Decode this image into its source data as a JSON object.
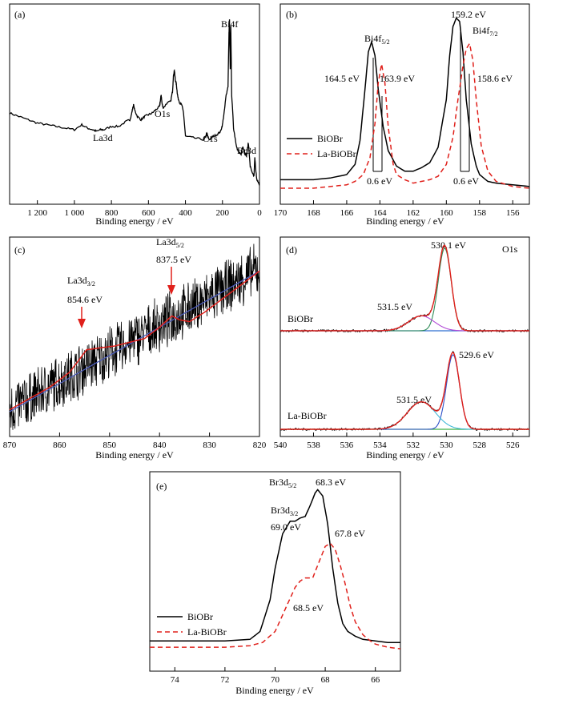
{
  "chart_data": [
    {
      "panel": "(a)",
      "type": "line",
      "xlabel": "Binding energy / eV",
      "xlim": [
        1350,
        0
      ],
      "xticks": [
        "1 200",
        "1 000",
        "800",
        "600",
        "400",
        "200",
        "0"
      ],
      "xtick_values": [
        1200,
        1000,
        800,
        600,
        400,
        200,
        0
      ],
      "annotations": [
        {
          "text": "Bi4f",
          "x": 160
        },
        {
          "text": "O1s",
          "x": 531
        },
        {
          "text": "La3d",
          "x": 835
        },
        {
          "text": "C1s",
          "x": 285
        },
        {
          "text": "Br3d",
          "x": 69
        }
      ],
      "series": [
        {
          "color": "#000000",
          "x": [
            1350,
            1300,
            1250,
            1200,
            1150,
            1100,
            1050,
            1000,
            960,
            930,
            900,
            880,
            860,
            840,
            800,
            760,
            720,
            700,
            690,
            685,
            680,
            675,
            660,
            640,
            620,
            600,
            580,
            560,
            540,
            535,
            531,
            527,
            520,
            500,
            480,
            470,
            465,
            460,
            455,
            450,
            445,
            440,
            430,
            420,
            410,
            400,
            350,
            300,
            290,
            285,
            280,
            270,
            250,
            230,
            210,
            200,
            190,
            180,
            170,
            165,
            162,
            158,
            155,
            150,
            140,
            130,
            120,
            110,
            100,
            95,
            90,
            80,
            70,
            65,
            60,
            50,
            40,
            30,
            25,
            20,
            15,
            10,
            5,
            0
          ],
          "y": [
            0.44,
            0.42,
            0.4,
            0.38,
            0.37,
            0.36,
            0.35,
            0.34,
            0.37,
            0.35,
            0.34,
            0.33,
            0.34,
            0.34,
            0.36,
            0.36,
            0.39,
            0.4,
            0.44,
            0.47,
            0.49,
            0.46,
            0.42,
            0.4,
            0.42,
            0.43,
            0.44,
            0.46,
            0.48,
            0.52,
            0.55,
            0.5,
            0.47,
            0.5,
            0.51,
            0.57,
            0.66,
            0.7,
            0.64,
            0.62,
            0.57,
            0.53,
            0.5,
            0.49,
            0.44,
            0.3,
            0.29,
            0.28,
            0.3,
            0.32,
            0.3,
            0.28,
            0.3,
            0.31,
            0.33,
            0.37,
            0.45,
            0.55,
            0.6,
            0.92,
            1.0,
            0.7,
            0.96,
            0.55,
            0.35,
            0.28,
            0.22,
            0.2,
            0.19,
            0.22,
            0.24,
            0.2,
            0.18,
            0.23,
            0.26,
            0.12,
            0.08,
            0.06,
            0.17,
            0.1,
            0.04,
            0.03,
            0.02,
            0.01
          ]
        }
      ]
    },
    {
      "panel": "(b)",
      "type": "line",
      "xlabel": "Binding energy / eV",
      "xlim": [
        170,
        155
      ],
      "xticks": [
        "170",
        "168",
        "166",
        "164",
        "162",
        "160",
        "158",
        "156"
      ],
      "xtick_values": [
        170,
        168,
        166,
        164,
        162,
        160,
        158,
        156
      ],
      "annotations": [
        {
          "text": "164.5 eV"
        },
        {
          "text": "163.9 eV"
        },
        {
          "text": "159.2 eV"
        },
        {
          "text": "158.6 eV"
        },
        {
          "text": "0.6 eV"
        },
        {
          "text": "0.6 eV"
        },
        {
          "text": "Bi4f",
          "sub": "5/2"
        },
        {
          "text": "Bi4f",
          "sub": "7/2"
        }
      ],
      "legend": {
        "position": "left",
        "entries": [
          "BiOBr",
          "La-BiOBr"
        ]
      },
      "series": [
        {
          "name": "BiOBr",
          "color": "#000000",
          "style": "solid",
          "x": [
            170,
            168,
            167,
            166,
            165.5,
            165.2,
            164.9,
            164.7,
            164.5,
            164.3,
            164.1,
            163.8,
            163.5,
            163,
            162.5,
            162,
            161.5,
            161,
            160.5,
            160,
            159.8,
            159.6,
            159.4,
            159.2,
            159,
            158.8,
            158.5,
            158.2,
            158,
            157.5,
            157,
            156,
            155
          ],
          "y": [
            0.05,
            0.05,
            0.06,
            0.08,
            0.14,
            0.28,
            0.58,
            0.8,
            0.86,
            0.78,
            0.58,
            0.36,
            0.22,
            0.13,
            0.1,
            0.1,
            0.12,
            0.15,
            0.24,
            0.52,
            0.78,
            0.95,
            1.0,
            0.98,
            0.8,
            0.52,
            0.26,
            0.13,
            0.08,
            0.04,
            0.03,
            0.02,
            0.01
          ]
        },
        {
          "name": "La-BiOBr",
          "color": "#e0201b",
          "style": "dashed",
          "x": [
            170,
            168,
            166,
            165.5,
            165,
            164.6,
            164.3,
            164.1,
            163.9,
            163.7,
            163.5,
            163.2,
            163,
            162.5,
            162,
            161.5,
            161,
            160.5,
            160,
            159.6,
            159.3,
            159,
            158.8,
            158.6,
            158.4,
            158.2,
            157.9,
            157.5,
            157,
            156,
            155
          ],
          "y": [
            0.0,
            0.0,
            0.02,
            0.04,
            0.08,
            0.18,
            0.38,
            0.62,
            0.73,
            0.62,
            0.36,
            0.14,
            0.08,
            0.05,
            0.03,
            0.04,
            0.05,
            0.07,
            0.14,
            0.3,
            0.52,
            0.72,
            0.82,
            0.85,
            0.75,
            0.52,
            0.25,
            0.1,
            0.04,
            0.01,
            0.0
          ]
        }
      ]
    },
    {
      "panel": "(c)",
      "type": "line",
      "xlabel": "Binding energy / eV",
      "xlim": [
        870,
        820
      ],
      "xticks": [
        "870",
        "860",
        "850",
        "840",
        "830",
        "820"
      ],
      "xtick_values": [
        870,
        860,
        850,
        840,
        830,
        820
      ],
      "annotations": [
        {
          "text": "La3d",
          "sub": "3/2"
        },
        {
          "text": "854.6 eV",
          "x": 854.6
        },
        {
          "text": "La3d",
          "sub": "5/2"
        },
        {
          "text": "837.5 eV",
          "x": 837.5
        }
      ],
      "series": [
        {
          "name": "raw",
          "color": "#000000",
          "style": "noisy",
          "x": [
            870,
            820
          ],
          "y": [
            0.1,
            0.85
          ],
          "noise": 0.13
        },
        {
          "name": "fit",
          "color": "#e0201b",
          "style": "solid",
          "x": [
            870,
            866,
            862,
            858,
            856,
            854.6,
            852,
            849,
            846,
            843,
            840,
            838,
            837.5,
            836,
            834,
            831,
            828,
            825,
            822,
            820
          ],
          "y": [
            0.1,
            0.16,
            0.22,
            0.3,
            0.37,
            0.42,
            0.43,
            0.44,
            0.46,
            0.48,
            0.54,
            0.59,
            0.6,
            0.58,
            0.57,
            0.62,
            0.68,
            0.74,
            0.8,
            0.84
          ]
        },
        {
          "name": "background",
          "color": "#4a5ab8",
          "style": "solid",
          "x": [
            870,
            820
          ],
          "y": [
            0.09,
            0.84
          ]
        }
      ]
    },
    {
      "panel": "(d)",
      "type": "line",
      "xlabel": "Binding energy / eV",
      "xlim": [
        540,
        525
      ],
      "xticks": [
        "540",
        "538",
        "536",
        "534",
        "532",
        "530",
        "528",
        "526"
      ],
      "xtick_values": [
        540,
        538,
        536,
        534,
        532,
        530,
        528,
        526
      ],
      "annotations": [
        {
          "text": "O1s"
        },
        {
          "text": "530.1 eV"
        },
        {
          "text": "531.5 eV"
        },
        {
          "text": "BiOBr"
        },
        {
          "text": "529.6 eV"
        },
        {
          "text": "531.5 eV"
        },
        {
          "text": "La-BiOBr"
        }
      ],
      "subplots": [
        {
          "label": "BiOBr",
          "baseline": 0.0,
          "peaks": [
            {
              "center": 530.1,
              "height": 1.0,
              "width": 0.55,
              "color": "#2e8b57"
            },
            {
              "center": 531.5,
              "height": 0.18,
              "width": 1.1,
              "color": "#b14ad6"
            }
          ],
          "fit_color": "#e0201b",
          "raw_color": "#000000",
          "bg_color": "#2e6fd0"
        },
        {
          "label": "La-BiOBr",
          "baseline": 0.0,
          "peaks": [
            {
              "center": 529.6,
              "height": 0.95,
              "width": 0.55,
              "color": "#2e50c8"
            },
            {
              "center": 531.5,
              "height": 0.35,
              "width": 1.2,
              "color": "#3fb8d8"
            }
          ],
          "fit_color": "#e0201b",
          "raw_color": "#000000",
          "bg_color": "#3cb043"
        }
      ]
    },
    {
      "panel": "(e)",
      "type": "line",
      "xlabel": "Binding energy / eV",
      "xlim": [
        75,
        65
      ],
      "xticks": [
        "74",
        "72",
        "70",
        "68",
        "66"
      ],
      "xtick_values": [
        74,
        72,
        70,
        68,
        66
      ],
      "annotations": [
        {
          "text": "Br3d",
          "sub": "5/2"
        },
        {
          "text": "68.3 eV"
        },
        {
          "text": "Br3d",
          "sub": "3/2"
        },
        {
          "text": "69.0 eV"
        },
        {
          "text": "67.8 eV"
        },
        {
          "text": "68.5 eV"
        }
      ],
      "legend": {
        "position": "bottom-left",
        "entries": [
          "BiOBr",
          "La-BiOBr"
        ]
      },
      "series": [
        {
          "name": "BiOBr",
          "color": "#000000",
          "style": "solid",
          "x": [
            75,
            74,
            73,
            72,
            71,
            70.6,
            70.2,
            70,
            69.7,
            69.4,
            69.2,
            69.0,
            68.8,
            68.6,
            68.4,
            68.3,
            68.1,
            67.9,
            67.7,
            67.5,
            67.3,
            67.1,
            66.8,
            66.5,
            66,
            65.5,
            65
          ],
          "y": [
            0.04,
            0.04,
            0.04,
            0.04,
            0.05,
            0.1,
            0.3,
            0.5,
            0.72,
            0.8,
            0.8,
            0.82,
            0.83,
            0.9,
            0.98,
            1.0,
            0.96,
            0.78,
            0.5,
            0.28,
            0.15,
            0.1,
            0.07,
            0.05,
            0.04,
            0.03,
            0.03
          ]
        },
        {
          "name": "La-BiOBr",
          "color": "#e0201b",
          "style": "dashed",
          "x": [
            75,
            74,
            73,
            72,
            71,
            70.5,
            70,
            69.6,
            69.2,
            69,
            68.8,
            68.5,
            68.2,
            68,
            67.8,
            67.6,
            67.4,
            67.2,
            67,
            66.8,
            66.5,
            66.2,
            66,
            65.5,
            65
          ],
          "y": [
            0.0,
            0.0,
            0.0,
            0.0,
            0.01,
            0.03,
            0.1,
            0.24,
            0.38,
            0.42,
            0.44,
            0.44,
            0.56,
            0.64,
            0.66,
            0.62,
            0.52,
            0.4,
            0.26,
            0.16,
            0.08,
            0.04,
            0.02,
            0.0,
            -0.01
          ]
        }
      ]
    }
  ],
  "labels": {
    "a": {
      "panel": "(a)",
      "bi4f": "Bi4f",
      "o1s": "O1s",
      "la3d": "La3d",
      "c1s": "C1s",
      "br3d": "Br3d"
    },
    "b": {
      "panel": "(b)",
      "p1": "164.5 eV",
      "p2": "163.9 eV",
      "p3": "159.2 eV",
      "p4": "158.6 eV",
      "d1": "0.6 eV",
      "d2": "0.6 eV",
      "bi52": "Bi4f",
      "bi52sub": "5/2",
      "bi72": "Bi4f",
      "bi72sub": "7/2",
      "leg1": "BiOBr",
      "leg2": "La-BiOBr"
    },
    "c": {
      "panel": "(c)",
      "la32": "La3d",
      "la32sub": "3/2",
      "e1": "854.6 eV",
      "la52": "La3d",
      "la52sub": "5/2",
      "e2": "837.5 eV"
    },
    "d": {
      "panel": "(d)",
      "o1s": "O1s",
      "t1": "530.1 eV",
      "t2": "531.5 eV",
      "s1": "BiOBr",
      "t3": "529.6 eV",
      "t4": "531.5 eV",
      "s2": "La-BiOBr"
    },
    "e": {
      "panel": "(e)",
      "br52": "Br3d",
      "br52sub": "5/2",
      "e1": "68.3 eV",
      "br32": "Br3d",
      "br32sub": "3/2",
      "e2": "69.0 eV",
      "e3": "67.8 eV",
      "e4": "68.5 eV",
      "leg1": "BiOBr",
      "leg2": "La-BiOBr"
    },
    "xlabel": "Binding energy / eV"
  }
}
